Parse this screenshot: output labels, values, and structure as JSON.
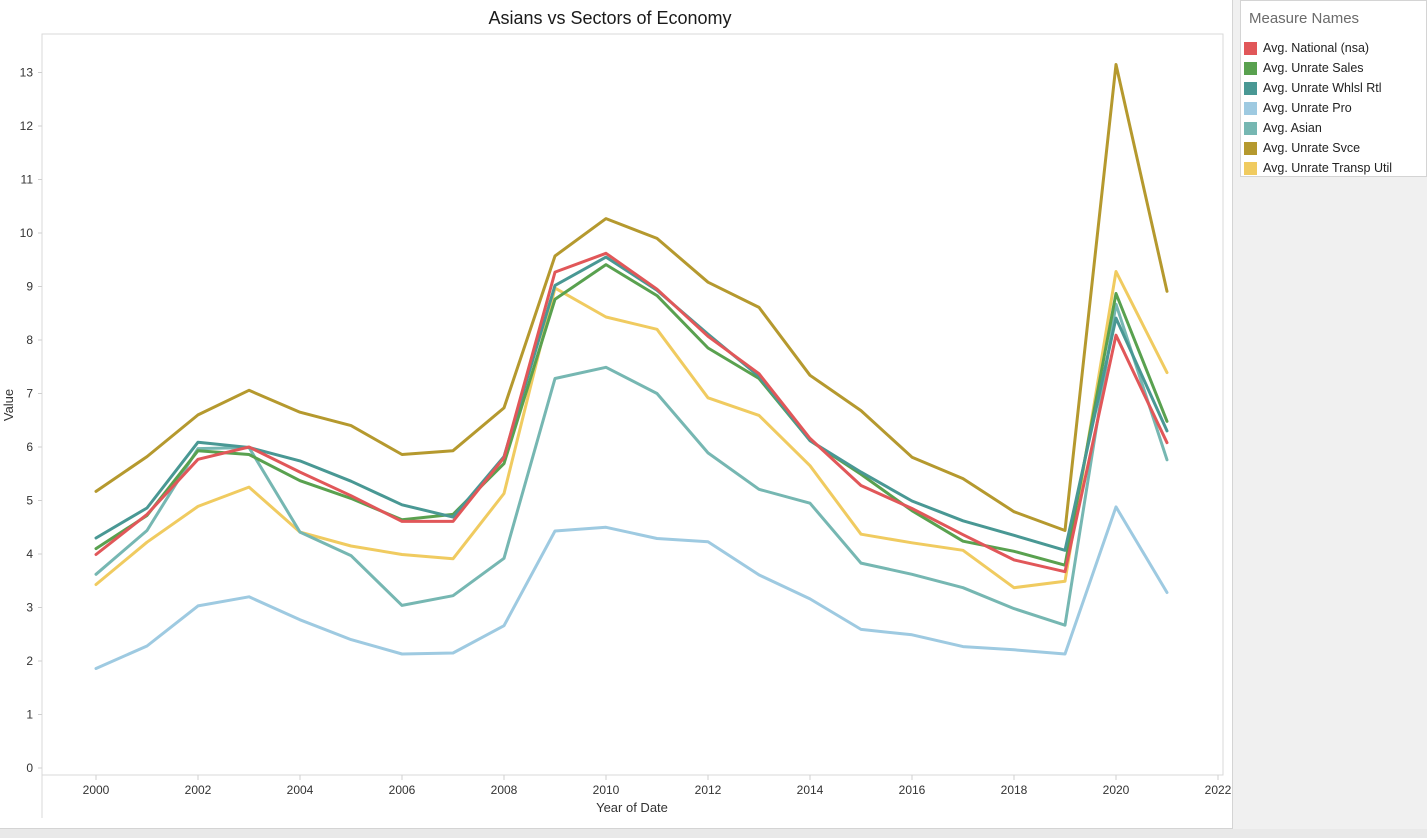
{
  "legend": {
    "title": "Measure Names"
  },
  "chart_data": {
    "type": "line",
    "title": "Asians vs Sectors of Economy",
    "xlabel": "Year of Date",
    "ylabel": "Value",
    "xlim": [
      1999,
      2022
    ],
    "ylim": [
      0,
      13.7
    ],
    "x_ticks": [
      "2000",
      "2002",
      "2004",
      "2006",
      "2008",
      "2010",
      "2012",
      "2014",
      "2016",
      "2018",
      "2020",
      "2022"
    ],
    "y_ticks": [
      "0",
      "1",
      "2",
      "3",
      "4",
      "5",
      "6",
      "7",
      "8",
      "9",
      "10",
      "11",
      "12",
      "13"
    ],
    "grid": false,
    "legend_position": "right",
    "x": [
      2000,
      2001,
      2002,
      2003,
      2004,
      2005,
      2006,
      2007,
      2008,
      2009,
      2010,
      2011,
      2012,
      2013,
      2014,
      2015,
      2016,
      2017,
      2018,
      2019,
      2020,
      2021
    ],
    "series": [
      {
        "name": "Avg. Unrate Svce",
        "color": "#b5992e",
        "values": [
          5.17,
          5.82,
          6.6,
          7.06,
          6.65,
          6.4,
          5.86,
          5.93,
          6.73,
          9.57,
          10.27,
          9.9,
          9.08,
          8.61,
          7.34,
          6.68,
          5.81,
          5.41,
          4.79,
          4.44,
          13.15,
          8.91
        ]
      },
      {
        "name": "Avg. Unrate Transp Util",
        "color": "#f0cb60",
        "values": [
          3.43,
          4.22,
          4.89,
          5.25,
          4.41,
          4.15,
          3.99,
          3.91,
          5.13,
          8.97,
          8.43,
          8.2,
          6.92,
          6.59,
          5.65,
          4.37,
          4.21,
          4.07,
          3.37,
          3.49,
          9.28,
          7.39
        ]
      },
      {
        "name": "Avg. Unrate Pro",
        "color": "#9ecae1",
        "values": [
          1.86,
          2.28,
          3.03,
          3.2,
          2.77,
          2.4,
          2.13,
          2.15,
          2.66,
          4.43,
          4.5,
          4.29,
          4.23,
          3.61,
          3.16,
          2.59,
          2.49,
          2.27,
          2.21,
          2.13,
          4.88,
          3.28
        ]
      },
      {
        "name": "Avg. Asian",
        "color": "#76b7b2",
        "values": [
          3.62,
          4.44,
          5.97,
          5.99,
          4.41,
          3.97,
          3.04,
          3.22,
          3.92,
          7.28,
          7.49,
          7.0,
          5.89,
          5.21,
          4.95,
          3.83,
          3.62,
          3.37,
          2.98,
          2.67,
          8.67,
          5.76
        ]
      },
      {
        "name": "Avg. Unrate Sales",
        "color": "#59a14f",
        "values": [
          4.1,
          4.72,
          5.93,
          5.86,
          5.37,
          5.04,
          4.64,
          4.74,
          5.69,
          8.76,
          9.41,
          8.83,
          7.85,
          7.28,
          6.12,
          5.49,
          4.81,
          4.24,
          4.05,
          3.79,
          8.87,
          6.48
        ]
      },
      {
        "name": "Avg. Unrate Whlsl Rtl",
        "color": "#499894",
        "values": [
          4.3,
          4.86,
          6.09,
          5.99,
          5.74,
          5.36,
          4.92,
          4.69,
          5.82,
          9.02,
          9.55,
          8.93,
          8.11,
          7.32,
          6.12,
          5.53,
          4.99,
          4.62,
          4.35,
          4.07,
          8.41,
          6.3
        ]
      },
      {
        "name": "Avg. National (nsa)",
        "color": "#e15759",
        "values": [
          3.99,
          4.74,
          5.77,
          6.0,
          5.53,
          5.09,
          4.61,
          4.61,
          5.8,
          9.27,
          9.62,
          8.95,
          8.07,
          7.37,
          6.16,
          5.28,
          4.85,
          4.36,
          3.89,
          3.67,
          8.09,
          6.08
        ]
      }
    ],
    "legend_order": [
      "Avg. National (nsa)",
      "Avg. Unrate Sales",
      "Avg. Unrate Whlsl Rtl",
      "Avg. Unrate Pro",
      "Avg. Asian",
      "Avg. Unrate Svce",
      "Avg. Unrate Transp Util"
    ]
  }
}
